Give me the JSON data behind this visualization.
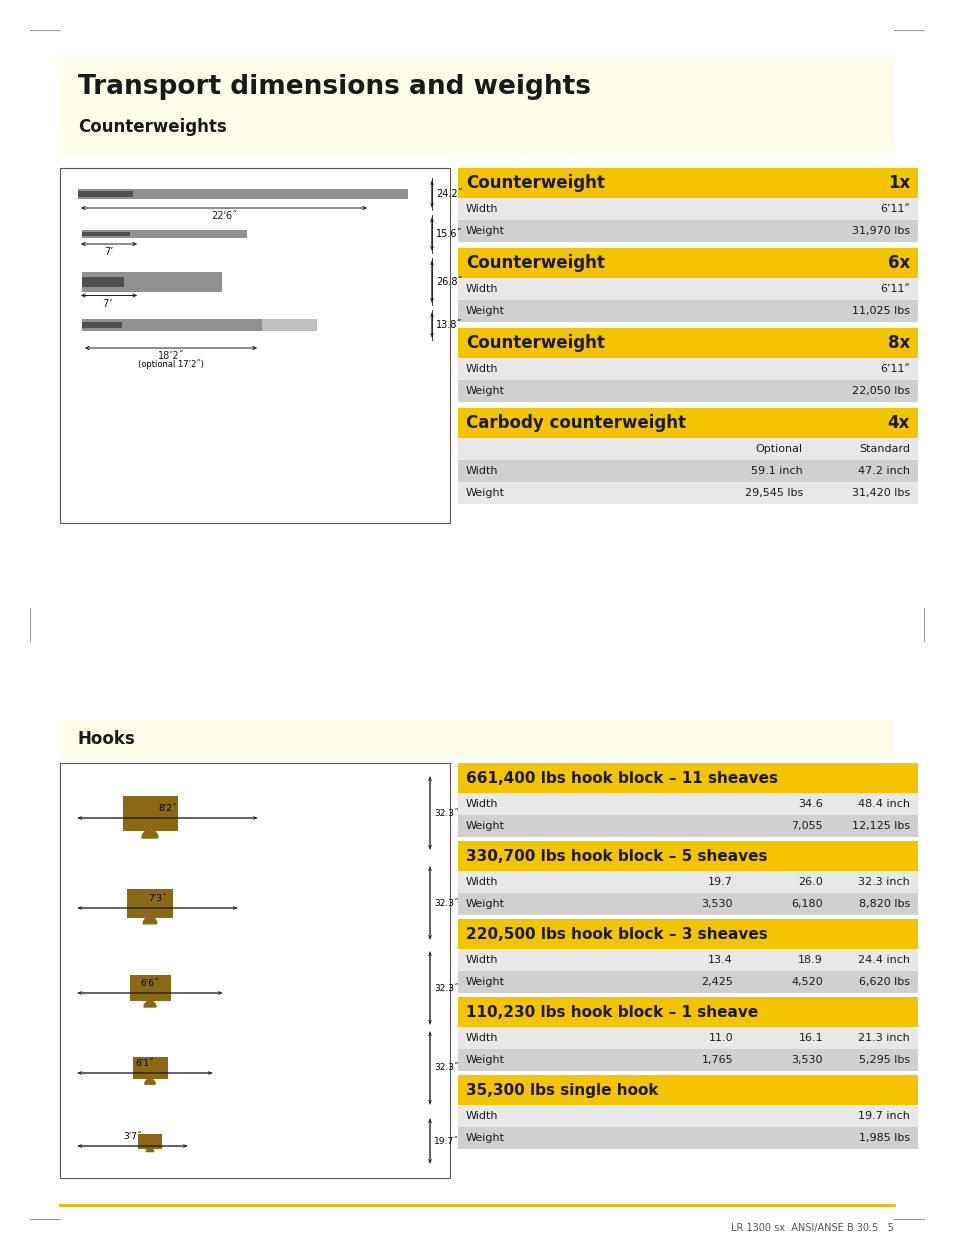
{
  "page_bg": "#ffffff",
  "light_yellow_bg": "#fffee8",
  "yellow_header": "#f5c400",
  "gray_row1": "#e8e8e8",
  "gray_row2": "#d0d0d0",
  "title": "Transport dimensions and weights",
  "subtitle": "Counterweights",
  "hooks_label": "Hooks",
  "footer": "LR 1300 sx  ANSI/ANSE B 30.5   5",
  "cw_sections": [
    {
      "header": "Counterweight",
      "qty": "1x",
      "rows": [
        {
          "label": "Width",
          "col1": "",
          "col2": "6’11ʺ"
        },
        {
          "label": "Weight",
          "col1": "",
          "col2": "31,970 lbs"
        }
      ]
    },
    {
      "header": "Counterweight",
      "qty": "6x",
      "rows": [
        {
          "label": "Width",
          "col1": "",
          "col2": "6’11ʺ"
        },
        {
          "label": "Weight",
          "col1": "",
          "col2": "11,025 lbs"
        }
      ]
    },
    {
      "header": "Counterweight",
      "qty": "8x",
      "rows": [
        {
          "label": "Width",
          "col1": "",
          "col2": "6’11ʺ"
        },
        {
          "label": "Weight",
          "col1": "",
          "col2": "22,050 lbs"
        }
      ]
    },
    {
      "header": "Carbody counterweight",
      "qty": "4x",
      "rows": [
        {
          "label": "",
          "col1": "Optional",
          "col2": "Standard"
        },
        {
          "label": "Width",
          "col1": "59.1 inch",
          "col2": "47.2 inch"
        },
        {
          "label": "Weight",
          "col1": "29,545 lbs",
          "col2": "31,420 lbs"
        }
      ]
    }
  ],
  "hook_sections": [
    {
      "header": "661,400 lbs hook block – 11 sheaves",
      "rows": [
        {
          "label": "Width",
          "c1": "",
          "c2": "34.6",
          "c3": "48.4 inch"
        },
        {
          "label": "Weight",
          "c1": "",
          "c2": "7,055",
          "c3": "12,125 lbs"
        }
      ]
    },
    {
      "header": "330,700 lbs hook block – 5 sheaves",
      "rows": [
        {
          "label": "Width",
          "c1": "19.7",
          "c2": "26.0",
          "c3": "32.3 inch"
        },
        {
          "label": "Weight",
          "c1": "3,530",
          "c2": "6,180",
          "c3": "8,820 lbs"
        }
      ]
    },
    {
      "header": "220,500 lbs hook block – 3 sheaves",
      "rows": [
        {
          "label": "Width",
          "c1": "13.4",
          "c2": "18.9",
          "c3": "24.4 inch"
        },
        {
          "label": "Weight",
          "c1": "2,425",
          "c2": "4,520",
          "c3": "6,620 lbs"
        }
      ]
    },
    {
      "header": "110,230 lbs hook block – 1 sheave",
      "rows": [
        {
          "label": "Width",
          "c1": "11.0",
          "c2": "16.1",
          "c3": "21.3 inch"
        },
        {
          "label": "Weight",
          "c1": "1,765",
          "c2": "3,530",
          "c3": "5,295 lbs"
        }
      ]
    },
    {
      "header": "35,300 lbs single hook",
      "rows": [
        {
          "label": "Width",
          "c1": "",
          "c2": "",
          "c3": "19.7 inch"
        },
        {
          "label": "Weight",
          "c1": "",
          "c2": "",
          "c3": "1,985 lbs"
        }
      ]
    }
  ]
}
